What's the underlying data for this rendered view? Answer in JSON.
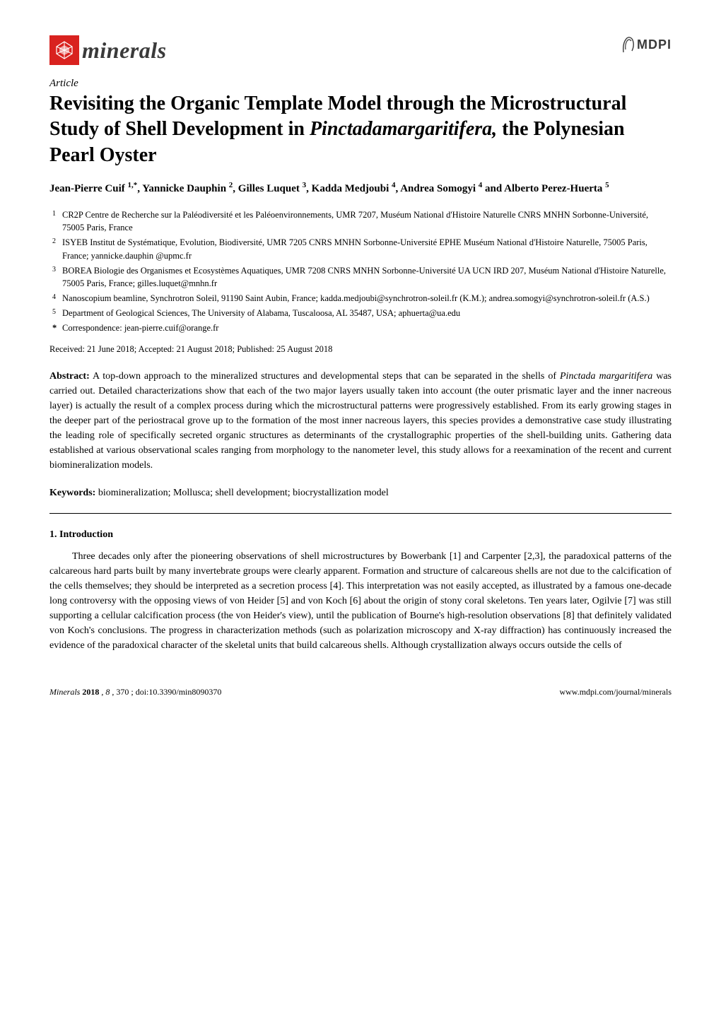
{
  "journal": {
    "logo_text": "minerals",
    "publisher_text": "MDPI"
  },
  "article": {
    "type": "Article",
    "title_before_species": "Revisiting the Organic Template Model through the Microstructural Study of Shell Development in ",
    "title_species": "Pinctadamargaritifera,",
    "title_after_species": " the Polynesian Pearl Oyster",
    "authors": [
      {
        "name": "Jean-Pierre Cuif",
        "markers": "1,*"
      },
      {
        "name": "Yannicke Dauphin",
        "markers": "2"
      },
      {
        "name": "Gilles Luquet",
        "markers": "3"
      },
      {
        "name": "Kadda Medjoubi",
        "markers": "4"
      },
      {
        "name": "Andrea Somogyi",
        "markers": "4"
      },
      {
        "name": "Alberto Perez-Huerta",
        "markers": "5"
      }
    ],
    "authors_connector": " and ",
    "affiliations": [
      {
        "marker": "1",
        "text": "CR2P Centre de Recherche sur la Paléodiversité et les Paléoenvironnements, UMR 7207, Muséum National d'Histoire Naturelle CNRS MNHN Sorbonne-Université, 75005 Paris, France"
      },
      {
        "marker": "2",
        "text": "ISYEB Institut de Systématique, Evolution, Biodiversité, UMR 7205 CNRS MNHN Sorbonne-Université EPHE Muséum National d'Histoire Naturelle, 75005 Paris, France; yannicke.dauphin @upmc.fr"
      },
      {
        "marker": "3",
        "text": "BOREA Biologie des Organismes et Ecosystèmes Aquatiques, UMR 7208 CNRS MNHN Sorbonne-Université UA UCN IRD 207, Muséum National d'Histoire Naturelle, 75005 Paris, France; gilles.luquet@mnhn.fr"
      },
      {
        "marker": "4",
        "text": "Nanoscopium beamline, Synchrotron Soleil, 91190 Saint Aubin, France; kadda.medjoubi@synchrotron-soleil.fr (K.M.); andrea.somogyi@synchrotron-soleil.fr (A.S.)"
      },
      {
        "marker": "5",
        "text": "Department of Geological Sciences, The University of Alabama, Tuscaloosa, AL 35487, USA; aphuerta@ua.edu"
      }
    ],
    "correspondence_marker": "*",
    "correspondence_text": "Correspondence: jean-pierre.cuif@orange.fr",
    "dates": "Received: 21 June 2018; Accepted: 21 August 2018; Published: 25 August 2018",
    "abstract_label": "Abstract:",
    "abstract_before": " A top-down approach to the mineralized structures and developmental steps that can be separated in the shells of ",
    "abstract_species": "Pinctada margaritifera",
    "abstract_after": " was carried out. Detailed characterizations show that each of the two major layers usually taken into account (the outer prismatic layer and the inner nacreous layer) is actually the result of a complex process during which the microstructural patterns were progressively established. From its early growing stages in the deeper part of the periostracal grove up to the formation of the most inner nacreous layers, this species provides a demonstrative case study illustrating the leading role of specifically secreted organic structures as determinants of the crystallographic properties of the shell-building units. Gathering data established at various observational scales ranging from morphology to the nanometer level, this study allows for a reexamination of the recent and current biomineralization models.",
    "keywords_label": "Keywords:",
    "keywords_text": " biomineralization; Mollusca; shell development; biocrystallization model"
  },
  "section1": {
    "heading": "1. Introduction",
    "paragraph1": "Three decades only after the pioneering observations of shell microstructures by Bowerbank [1] and Carpenter [2,3], the paradoxical patterns of the calcareous hard parts built by many invertebrate groups were clearly apparent. Formation and structure of calcareous shells are not due to the calcification of the cells themselves; they should be interpreted as a secretion process [4]. This interpretation was not easily accepted, as illustrated by a famous one-decade long controversy with the opposing views of von Heider [5] and von Koch [6] about the origin of stony coral skeletons. Ten years later, Ogilvie [7] was still supporting a cellular calcification process (the von Heider's view), until the publication of Bourne's high-resolution observations [8] that definitely validated von Koch's conclusions. The progress in characterization methods (such as polarization microscopy and X-ray diffraction) has continuously increased the evidence of the paradoxical character of the skeletal units that build calcareous shells. Although crystallization always occurs outside the cells of"
  },
  "footer": {
    "journal": "Minerals",
    "year": "2018",
    "volume": "8",
    "page": "370",
    "doi": "doi:10.3390/min8090370",
    "url": "www.mdpi.com/journal/minerals"
  },
  "colors": {
    "logo_bg": "#d9221f",
    "text": "#000000",
    "logo_text": "#3a3a3a"
  }
}
